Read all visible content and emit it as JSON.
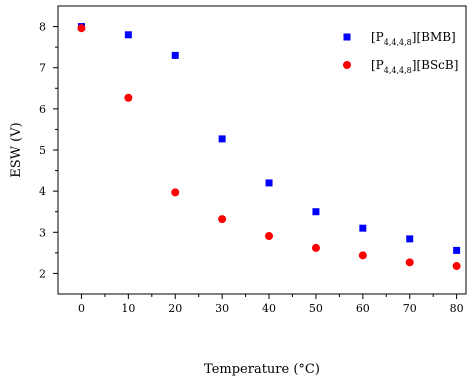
{
  "chart_data": {
    "type": "scatter",
    "title": "",
    "xlabel": "Temperature (°C)",
    "ylabel": "ESW (V)",
    "xlim": [
      -5,
      82
    ],
    "ylim": [
      1.5,
      8.5
    ],
    "x_ticks": [
      0,
      10,
      20,
      30,
      40,
      50,
      60,
      70,
      80
    ],
    "y_ticks": [
      2,
      3,
      4,
      5,
      6,
      7,
      8
    ],
    "grid": false,
    "legend_position": "top-right",
    "series": [
      {
        "name_main": "[P",
        "name_sub": "4,4,4,8",
        "name_tail": "][BMB]",
        "marker": "square",
        "color": "#0000ff",
        "x": [
          0,
          10,
          20,
          30,
          40,
          50,
          60,
          70,
          80
        ],
        "y": [
          8.0,
          7.8,
          7.3,
          5.27,
          4.2,
          3.5,
          3.1,
          2.84,
          2.56
        ]
      },
      {
        "name_main": "[P",
        "name_sub": "4,4,4,8",
        "name_tail": "][BScB]",
        "marker": "circle",
        "color": "#ff0000",
        "x": [
          0,
          10,
          20,
          30,
          40,
          50,
          60,
          70,
          80
        ],
        "y": [
          7.96,
          6.27,
          3.97,
          3.32,
          2.91,
          2.62,
          2.44,
          2.27,
          2.18
        ]
      }
    ]
  }
}
